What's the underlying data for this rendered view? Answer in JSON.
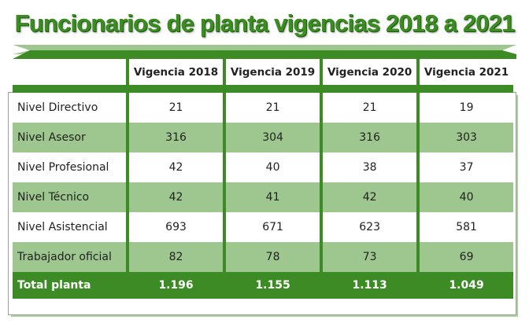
{
  "title": "Funcionarios de planta vigencias 2018 a 2021",
  "colors": {
    "dark_green": "#3d8b25",
    "light_green": "#9dc78e"
  },
  "columns": [
    "Vigencia 2018",
    "Vigencia 2019",
    "Vigencia 2020",
    "Vigencia 2021"
  ],
  "rows": [
    {
      "label": "Nivel Directivo",
      "values": [
        "21",
        "21",
        "21",
        "19"
      ]
    },
    {
      "label": "Nivel Asesor",
      "values": [
        "316",
        "304",
        "316",
        "303"
      ]
    },
    {
      "label": "Nivel Profesional",
      "values": [
        "42",
        "40",
        "38",
        "37"
      ]
    },
    {
      "label": "Nivel Técnico",
      "values": [
        "42",
        "41",
        "42",
        "40"
      ]
    },
    {
      "label": "Nivel Asistencial",
      "values": [
        "693",
        "671",
        "623",
        "581"
      ]
    },
    {
      "label": "Trabajador oficial",
      "values": [
        "82",
        "78",
        "73",
        "69"
      ]
    }
  ],
  "total": {
    "label": "Total planta",
    "values": [
      "1.196",
      "1.155",
      "1.113",
      "1.049"
    ]
  }
}
